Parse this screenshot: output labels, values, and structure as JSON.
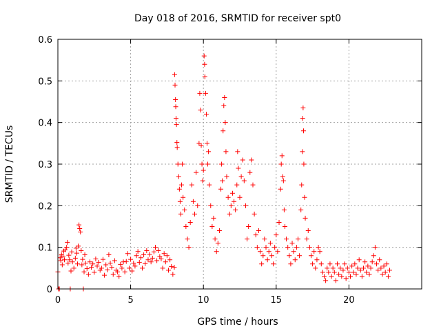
{
  "chart_data": {
    "type": "scatter",
    "title": "Day 018 of 2016, SRMTID for receiver spt0",
    "xlabel": "GPS time / hours",
    "ylabel": "SRMTID / TECUs",
    "xlim": [
      0,
      25
    ],
    "ylim": [
      0,
      0.6
    ],
    "xticks": [
      0,
      5,
      10,
      15,
      20
    ],
    "xtick_labels": [
      "0",
      "5",
      "10",
      "15",
      "20"
    ],
    "yticks": [
      0,
      0.1,
      0.2,
      0.3,
      0.4,
      0.5,
      0.6
    ],
    "ytick_labels": [
      "0",
      "0.1",
      "0.2",
      "0.3",
      "0.4",
      "0.5",
      "0.6"
    ],
    "grid": true,
    "marker": "+",
    "color": "#ff0000",
    "series": [
      {
        "name": "SRMTID",
        "points": [
          [
            0.0,
            0.041
          ],
          [
            0.05,
            0.0
          ],
          [
            0.1,
            0.0
          ],
          [
            0.15,
            0.075
          ],
          [
            0.2,
            0.068
          ],
          [
            0.25,
            0.082
          ],
          [
            0.3,
            0.058
          ],
          [
            0.35,
            0.079
          ],
          [
            0.4,
            0.091
          ],
          [
            0.45,
            0.07
          ],
          [
            0.5,
            0.094
          ],
          [
            0.6,
            0.1
          ],
          [
            0.65,
            0.112
          ],
          [
            0.7,
            0.062
          ],
          [
            0.75,
            0.081
          ],
          [
            0.8,
            0.07
          ],
          [
            0.85,
            0.0
          ],
          [
            0.9,
            0.043
          ],
          [
            0.95,
            0.089
          ],
          [
            1.0,
            0.065
          ],
          [
            1.1,
            0.05
          ],
          [
            1.2,
            0.074
          ],
          [
            1.25,
            0.098
          ],
          [
            1.3,
            0.086
          ],
          [
            1.35,
            0.06
          ],
          [
            1.4,
            0.103
          ],
          [
            1.45,
            0.154
          ],
          [
            1.5,
            0.145
          ],
          [
            1.55,
            0.137
          ],
          [
            1.6,
            0.092
          ],
          [
            1.65,
            0.058
          ],
          [
            1.7,
            0.071
          ],
          [
            1.75,
            0.0
          ],
          [
            1.8,
            0.041
          ],
          [
            1.85,
            0.082
          ],
          [
            1.9,
            0.062
          ],
          [
            2.0,
            0.049
          ],
          [
            2.1,
            0.035
          ],
          [
            2.2,
            0.065
          ],
          [
            2.3,
            0.052
          ],
          [
            2.4,
            0.06
          ],
          [
            2.5,
            0.04
          ],
          [
            2.6,
            0.072
          ],
          [
            2.7,
            0.055
          ],
          [
            2.8,
            0.064
          ],
          [
            2.9,
            0.045
          ],
          [
            3.0,
            0.05
          ],
          [
            3.1,
            0.071
          ],
          [
            3.2,
            0.033
          ],
          [
            3.3,
            0.058
          ],
          [
            3.4,
            0.046
          ],
          [
            3.5,
            0.082
          ],
          [
            3.6,
            0.062
          ],
          [
            3.7,
            0.052
          ],
          [
            3.8,
            0.035
          ],
          [
            3.9,
            0.068
          ],
          [
            4.0,
            0.045
          ],
          [
            4.1,
            0.041
          ],
          [
            4.2,
            0.03
          ],
          [
            4.3,
            0.059
          ],
          [
            4.4,
            0.05
          ],
          [
            4.5,
            0.065
          ],
          [
            4.6,
            0.041
          ],
          [
            4.7,
            0.066
          ],
          [
            4.8,
            0.085
          ],
          [
            4.9,
            0.05
          ],
          [
            5.0,
            0.071
          ],
          [
            5.1,
            0.043
          ],
          [
            5.2,
            0.062
          ],
          [
            5.3,
            0.055
          ],
          [
            5.4,
            0.08
          ],
          [
            5.5,
            0.09
          ],
          [
            5.6,
            0.064
          ],
          [
            5.7,
            0.075
          ],
          [
            5.8,
            0.05
          ],
          [
            5.9,
            0.082
          ],
          [
            6.0,
            0.061
          ],
          [
            6.1,
            0.092
          ],
          [
            6.2,
            0.07
          ],
          [
            6.3,
            0.083
          ],
          [
            6.4,
            0.065
          ],
          [
            6.5,
            0.074
          ],
          [
            6.6,
            0.089
          ],
          [
            6.7,
            0.1
          ],
          [
            6.8,
            0.068
          ],
          [
            6.9,
            0.092
          ],
          [
            7.0,
            0.078
          ],
          [
            7.1,
            0.072
          ],
          [
            7.2,
            0.05
          ],
          [
            7.3,
            0.085
          ],
          [
            7.4,
            0.065
          ],
          [
            7.5,
            0.08
          ],
          [
            7.6,
            0.045
          ],
          [
            7.7,
            0.07
          ],
          [
            7.8,
            0.054
          ],
          [
            7.9,
            0.035
          ],
          [
            8.0,
            0.052
          ],
          [
            8.02,
            0.515
          ],
          [
            8.05,
            0.49
          ],
          [
            8.08,
            0.455
          ],
          [
            8.1,
            0.438
          ],
          [
            8.12,
            0.41
          ],
          [
            8.15,
            0.395
          ],
          [
            8.18,
            0.352
          ],
          [
            8.2,
            0.34
          ],
          [
            8.25,
            0.3
          ],
          [
            8.3,
            0.27
          ],
          [
            8.35,
            0.24
          ],
          [
            8.4,
            0.21
          ],
          [
            8.45,
            0.18
          ],
          [
            8.5,
            0.25
          ],
          [
            8.55,
            0.3
          ],
          [
            8.6,
            0.22
          ],
          [
            8.7,
            0.19
          ],
          [
            8.8,
            0.15
          ],
          [
            8.9,
            0.12
          ],
          [
            9.0,
            0.1
          ],
          [
            9.1,
            0.16
          ],
          [
            9.2,
            0.25
          ],
          [
            9.3,
            0.21
          ],
          [
            9.4,
            0.18
          ],
          [
            9.5,
            0.28
          ],
          [
            9.6,
            0.2
          ],
          [
            9.7,
            0.35
          ],
          [
            9.75,
            0.47
          ],
          [
            9.8,
            0.43
          ],
          [
            9.85,
            0.345
          ],
          [
            9.9,
            0.3
          ],
          [
            9.95,
            0.26
          ],
          [
            10.0,
            0.285
          ],
          [
            10.05,
            0.56
          ],
          [
            10.08,
            0.54
          ],
          [
            10.1,
            0.51
          ],
          [
            10.15,
            0.47
          ],
          [
            10.2,
            0.42
          ],
          [
            10.25,
            0.35
          ],
          [
            10.3,
            0.3
          ],
          [
            10.35,
            0.33
          ],
          [
            10.4,
            0.25
          ],
          [
            10.5,
            0.2
          ],
          [
            10.6,
            0.15
          ],
          [
            10.7,
            0.17
          ],
          [
            10.8,
            0.12
          ],
          [
            10.9,
            0.09
          ],
          [
            11.0,
            0.11
          ],
          [
            11.1,
            0.14
          ],
          [
            11.2,
            0.24
          ],
          [
            11.25,
            0.3
          ],
          [
            11.3,
            0.26
          ],
          [
            11.35,
            0.38
          ],
          [
            11.4,
            0.44
          ],
          [
            11.45,
            0.46
          ],
          [
            11.5,
            0.4
          ],
          [
            11.55,
            0.33
          ],
          [
            11.6,
            0.27
          ],
          [
            11.7,
            0.22
          ],
          [
            11.8,
            0.18
          ],
          [
            11.9,
            0.2
          ],
          [
            12.0,
            0.23
          ],
          [
            12.1,
            0.21
          ],
          [
            12.2,
            0.19
          ],
          [
            12.3,
            0.25
          ],
          [
            12.35,
            0.33
          ],
          [
            12.4,
            0.29
          ],
          [
            12.5,
            0.22
          ],
          [
            12.6,
            0.27
          ],
          [
            12.7,
            0.31
          ],
          [
            12.8,
            0.26
          ],
          [
            12.9,
            0.2
          ],
          [
            13.0,
            0.12
          ],
          [
            13.1,
            0.15
          ],
          [
            13.2,
            0.28
          ],
          [
            13.3,
            0.31
          ],
          [
            13.4,
            0.25
          ],
          [
            13.5,
            0.18
          ],
          [
            13.6,
            0.13
          ],
          [
            13.7,
            0.1
          ],
          [
            13.8,
            0.14
          ],
          [
            13.9,
            0.09
          ],
          [
            14.0,
            0.06
          ],
          [
            14.1,
            0.08
          ],
          [
            14.2,
            0.12
          ],
          [
            14.3,
            0.1
          ],
          [
            14.4,
            0.07
          ],
          [
            14.5,
            0.09
          ],
          [
            14.6,
            0.11
          ],
          [
            14.7,
            0.08
          ],
          [
            14.8,
            0.06
          ],
          [
            14.9,
            0.1
          ],
          [
            15.0,
            0.13
          ],
          [
            15.1,
            0.09
          ],
          [
            15.2,
            0.16
          ],
          [
            15.3,
            0.24
          ],
          [
            15.35,
            0.3
          ],
          [
            15.4,
            0.32
          ],
          [
            15.45,
            0.27
          ],
          [
            15.5,
            0.26
          ],
          [
            15.55,
            0.19
          ],
          [
            15.6,
            0.15
          ],
          [
            15.7,
            0.12
          ],
          [
            15.8,
            0.1
          ],
          [
            15.9,
            0.08
          ],
          [
            16.0,
            0.06
          ],
          [
            16.1,
            0.11
          ],
          [
            16.2,
            0.09
          ],
          [
            16.3,
            0.07
          ],
          [
            16.4,
            0.1
          ],
          [
            16.5,
            0.12
          ],
          [
            16.6,
            0.08
          ],
          [
            16.7,
            0.19
          ],
          [
            16.75,
            0.25
          ],
          [
            16.8,
            0.33
          ],
          [
            16.82,
            0.41
          ],
          [
            16.85,
            0.435
          ],
          [
            16.88,
            0.38
          ],
          [
            16.9,
            0.3
          ],
          [
            16.95,
            0.22
          ],
          [
            17.0,
            0.17
          ],
          [
            17.1,
            0.12
          ],
          [
            17.2,
            0.14
          ],
          [
            17.3,
            0.1
          ],
          [
            17.4,
            0.08
          ],
          [
            17.5,
            0.06
          ],
          [
            17.6,
            0.09
          ],
          [
            17.7,
            0.05
          ],
          [
            17.8,
            0.07
          ],
          [
            17.9,
            0.1
          ],
          [
            18.0,
            0.09
          ],
          [
            18.1,
            0.06
          ],
          [
            18.2,
            0.04
          ],
          [
            18.3,
            0.03
          ],
          [
            18.4,
            0.02
          ],
          [
            18.5,
            0.05
          ],
          [
            18.6,
            0.04
          ],
          [
            18.7,
            0.06
          ],
          [
            18.8,
            0.03
          ],
          [
            18.9,
            0.05
          ],
          [
            19.0,
            0.04
          ],
          [
            19.1,
            0.02
          ],
          [
            19.2,
            0.06
          ],
          [
            19.3,
            0.035
          ],
          [
            19.4,
            0.05
          ],
          [
            19.5,
            0.03
          ],
          [
            19.6,
            0.045
          ],
          [
            19.7,
            0.06
          ],
          [
            19.8,
            0.025
          ],
          [
            19.9,
            0.05
          ],
          [
            20.0,
            0.04
          ],
          [
            20.1,
            0.03
          ],
          [
            20.2,
            0.055
          ],
          [
            20.3,
            0.04
          ],
          [
            20.4,
            0.06
          ],
          [
            20.5,
            0.035
          ],
          [
            20.6,
            0.05
          ],
          [
            20.7,
            0.07
          ],
          [
            20.8,
            0.045
          ],
          [
            20.9,
            0.03
          ],
          [
            21.0,
            0.05
          ],
          [
            21.1,
            0.065
          ],
          [
            21.2,
            0.04
          ],
          [
            21.3,
            0.055
          ],
          [
            21.4,
            0.035
          ],
          [
            21.5,
            0.05
          ],
          [
            21.6,
            0.065
          ],
          [
            21.7,
            0.08
          ],
          [
            21.8,
            0.1
          ],
          [
            21.9,
            0.06
          ],
          [
            22.0,
            0.045
          ],
          [
            22.1,
            0.07
          ],
          [
            22.2,
            0.05
          ],
          [
            22.3,
            0.035
          ],
          [
            22.4,
            0.055
          ],
          [
            22.5,
            0.04
          ],
          [
            22.6,
            0.06
          ],
          [
            22.7,
            0.03
          ],
          [
            22.8,
            0.045
          ]
        ]
      }
    ]
  }
}
